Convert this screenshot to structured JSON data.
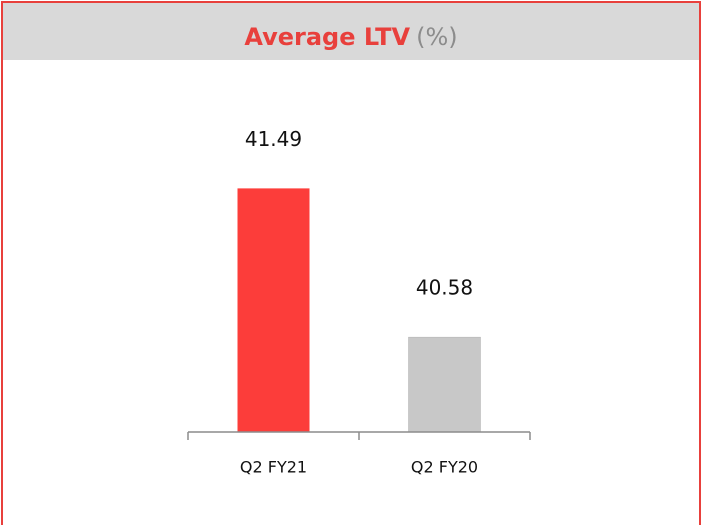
{
  "chart_data": {
    "type": "bar",
    "title": "Average LTV",
    "title_unit": "(%)",
    "categories": [
      "Q2 FY21",
      "Q2 FY20"
    ],
    "values": [
      41.49,
      40.58
    ],
    "colors": [
      "#fc3d3a",
      "#c8c8c8"
    ],
    "ylim": [
      40,
      42
    ]
  }
}
